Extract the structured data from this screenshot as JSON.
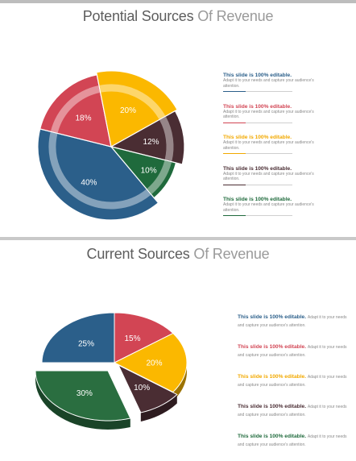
{
  "chart_data": [
    {
      "type": "pie",
      "title_main": "Potential Sources",
      "title_accent": "Of Revenue",
      "slices": [
        {
          "label": "40%",
          "value": 40,
          "color": "#2b5f8a"
        },
        {
          "label": "18%",
          "value": 18,
          "color": "#d24554"
        },
        {
          "label": "20%",
          "value": 20,
          "color": "#fbb800"
        },
        {
          "label": "12%",
          "value": 12,
          "color": "#4a2d33"
        },
        {
          "label": "10%",
          "value": 10,
          "color": "#1f6a3c"
        }
      ]
    },
    {
      "type": "pie",
      "title_main": "Current Sources",
      "title_accent": "Of Revenue",
      "slices": [
        {
          "label": "15%",
          "value": 15,
          "color": "#d24554"
        },
        {
          "label": "20%",
          "value": 20,
          "color": "#fbb800"
        },
        {
          "label": "10%",
          "value": 10,
          "color": "#4a2d33"
        },
        {
          "label": "30%",
          "value": 30,
          "color": "#2a6e40"
        },
        {
          "label": "25%",
          "value": 25,
          "color": "#2b5f8a"
        }
      ]
    }
  ],
  "top_notes": [
    {
      "heading": "This slide is 100% editable.",
      "text": "Adapt it to your needs and capture your audience's attention.",
      "color": "#2b5f8a"
    },
    {
      "heading": "This slide is 100% editable.",
      "text": "Adapt it to your needs and capture your audience's attention.",
      "color": "#d24554"
    },
    {
      "heading": "This slide is 100% editable.",
      "text": "Adapt it to your needs and capture your audience's attention.",
      "color": "#f2a900"
    },
    {
      "heading": "This slide is 100% editable.",
      "text": "Adapt it to your needs and capture your audience's attention.",
      "color": "#4a2d33"
    },
    {
      "heading": "This slide is 100% editable.",
      "text": "Adapt it to your needs and capture your audience's attention.",
      "color": "#1f6a3c"
    }
  ],
  "bottom_notes": [
    {
      "heading": "This slide is 100% editable.",
      "text": "Adapt it to your needs and capture your audience's attention.",
      "color": "#2b5f8a"
    },
    {
      "heading": "This slide is 100% editable.",
      "text": "Adapt it to your needs and capture your audience's attention.",
      "color": "#d24554"
    },
    {
      "heading": "This slide is 100% editable.",
      "text": "Adapt it to your needs and capture your audience's attention.",
      "color": "#f2a900"
    },
    {
      "heading": "This slide is 100% editable.",
      "text": "Adapt it to your needs and capture your audience's attention.",
      "color": "#4a2d33"
    },
    {
      "heading": "This slide is 100% editable.",
      "text": "Adapt it to your needs and capture your audience's attention.",
      "color": "#1f6a3c"
    }
  ]
}
